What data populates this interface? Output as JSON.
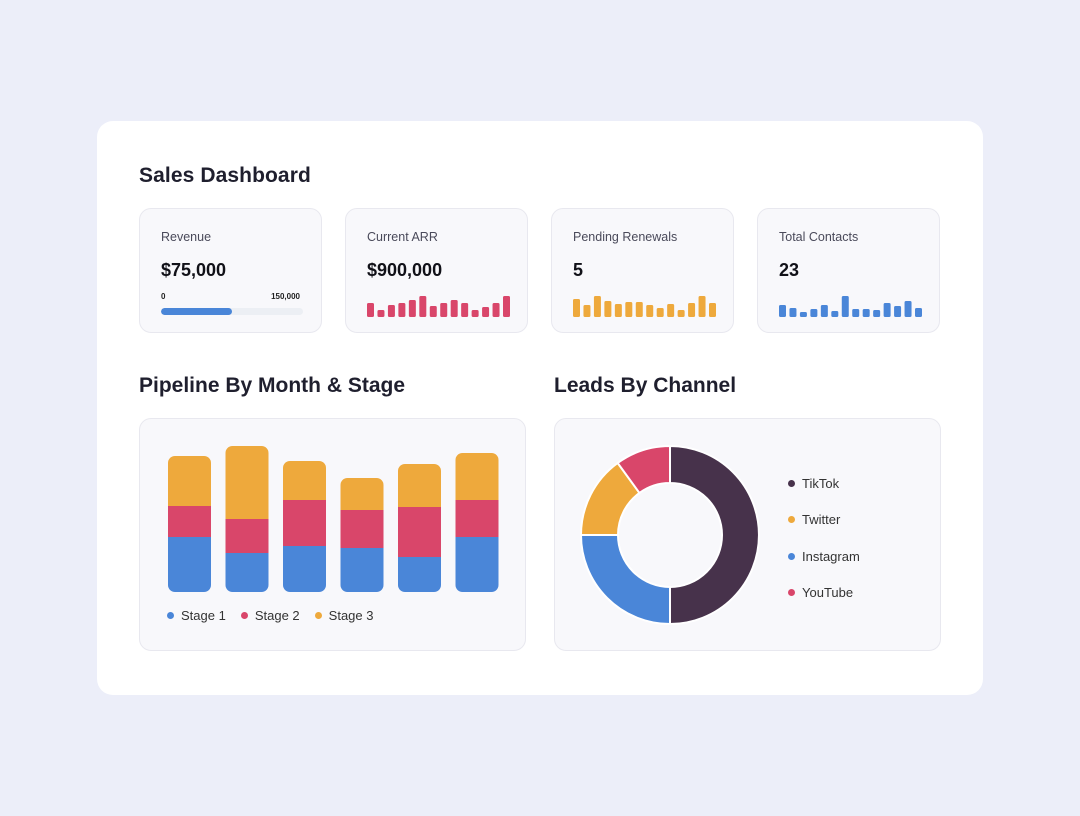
{
  "dashboard": {
    "title": "Sales Dashboard",
    "kpis": [
      {
        "label": "Revenue",
        "value": "$75,000",
        "range_min": "0",
        "range_max": "150,000",
        "progress": 0.5,
        "color": "#4a86d8"
      },
      {
        "label": "Current ARR",
        "value": "$900,000",
        "color": "#d9466a",
        "spark": [
          14,
          7,
          12,
          14,
          17,
          21,
          11,
          14,
          17,
          14,
          7,
          10,
          14,
          21
        ]
      },
      {
        "label": "Pending Renewals",
        "value": "5",
        "color": "#eea93c",
        "spark": [
          18,
          12,
          21,
          16,
          13,
          15,
          15,
          12,
          9,
          13,
          7,
          14,
          21,
          14
        ]
      },
      {
        "label": "Total Contacts",
        "value": "23",
        "color": "#4a86d8",
        "spark": [
          12,
          9,
          5,
          8,
          12,
          6,
          21,
          8,
          8,
          7,
          14,
          11,
          16,
          9
        ]
      }
    ]
  },
  "pipeline": {
    "title": "Pipeline By Month & Stage",
    "legend": [
      {
        "name": "Stage 1",
        "color": "#4a86d8"
      },
      {
        "name": "Stage 2",
        "color": "#d9466a"
      },
      {
        "name": "Stage 3",
        "color": "#eea93c"
      }
    ]
  },
  "leads": {
    "title": "Leads By Channel",
    "legend": [
      {
        "name": "TikTok",
        "color": "#47324b"
      },
      {
        "name": "Twitter",
        "color": "#eea93c"
      },
      {
        "name": "Instagram",
        "color": "#4a86d8"
      },
      {
        "name": "YouTube",
        "color": "#d9466a"
      }
    ]
  },
  "chart_data": [
    {
      "type": "bar",
      "stacked": true,
      "title": "Pipeline By Month & Stage",
      "categories": [
        "",
        "",
        "",
        "",
        "",
        ""
      ],
      "series": [
        {
          "name": "Stage 1",
          "values": [
            55,
            39,
            46,
            44,
            35,
            55
          ]
        },
        {
          "name": "Stage 2",
          "values": [
            31,
            34,
            46,
            38,
            50,
            37
          ]
        },
        {
          "name": "Stage 3",
          "values": [
            50,
            73,
            39,
            32,
            43,
            47
          ]
        }
      ],
      "ylim": [
        0,
        146
      ],
      "grid": false,
      "legend": "bottom-left"
    },
    {
      "type": "pie",
      "donut": true,
      "title": "Leads By Channel",
      "labels": [
        "TikTok",
        "Instagram",
        "Twitter",
        "YouTube"
      ],
      "values": [
        50,
        25,
        15,
        10
      ],
      "colors": [
        "#47324b",
        "#4a86d8",
        "#eea93c",
        "#d9466a"
      ],
      "legend": "right"
    }
  ]
}
